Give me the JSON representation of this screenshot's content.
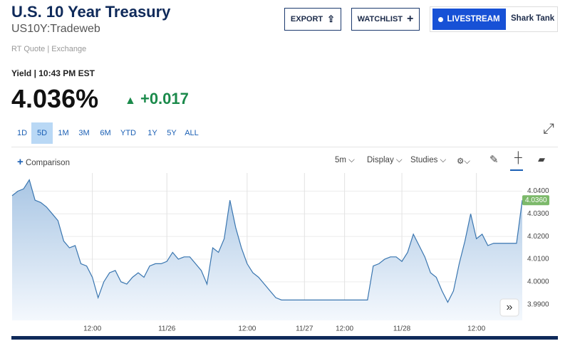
{
  "header": {
    "title": "U.S. 10 Year Treasury",
    "symbol": "US10Y:Tradeweb",
    "source": "RT Quote | Exchange",
    "buttons": {
      "export": "EXPORT",
      "watchlist": "WATCHLIST",
      "livestream": "LIVESTREAM",
      "show": "Shark Tank"
    }
  },
  "quote": {
    "label": "Yield | 10:43 PM EST",
    "price": "4.036%",
    "change": "+0.017"
  },
  "ranges": [
    "1D",
    "5D",
    "1M",
    "3M",
    "6M",
    "YTD",
    "1Y",
    "5Y",
    "ALL"
  ],
  "toolbar": {
    "comparison": "Comparison",
    "interval": "5m",
    "display": "Display",
    "studies": "Studies"
  },
  "chart_data": {
    "type": "line",
    "categories": [
      null,
      null,
      null,
      null,
      null,
      null,
      null,
      null,
      null,
      null,
      null,
      null,
      null,
      null,
      "12:00",
      null,
      null,
      null,
      null,
      null,
      null,
      null,
      null,
      null,
      null,
      null,
      null,
      "11/26",
      null,
      null,
      null,
      null,
      null,
      null,
      null,
      null,
      null,
      null,
      null,
      null,
      null,
      "12:00",
      null,
      null,
      null,
      null,
      null,
      null,
      null,
      null,
      null,
      "11/27",
      null,
      null,
      null,
      null,
      null,
      null,
      "12:00",
      null,
      null,
      null,
      null,
      null,
      null,
      null,
      null,
      null,
      "11/28",
      null,
      null,
      null,
      null,
      null,
      null,
      null,
      null,
      null,
      null,
      null,
      null,
      "12:00",
      null,
      null,
      null,
      null,
      null,
      null,
      null,
      null
    ],
    "values": [
      4.038,
      4.04,
      4.041,
      4.045,
      4.036,
      4.035,
      4.033,
      4.03,
      4.027,
      4.018,
      4.015,
      4.016,
      4.008,
      4.007,
      4.002,
      3.993,
      4.0,
      4.004,
      4.005,
      4.0,
      3.999,
      4.002,
      4.004,
      4.002,
      4.007,
      4.008,
      4.008,
      4.009,
      4.013,
      4.01,
      4.011,
      4.011,
      4.008,
      4.005,
      3.999,
      4.015,
      4.013,
      4.019,
      4.036,
      4.024,
      4.015,
      4.008,
      4.004,
      4.002,
      3.999,
      3.996,
      3.993,
      3.992,
      3.992,
      3.992,
      3.992,
      3.992,
      3.992,
      3.992,
      3.992,
      3.992,
      3.992,
      3.992,
      3.992,
      3.992,
      3.992,
      3.992,
      3.992,
      4.007,
      4.008,
      4.01,
      4.011,
      4.011,
      4.009,
      4.013,
      4.021,
      4.016,
      4.011,
      4.004,
      4.002,
      3.996,
      3.991,
      3.996,
      4.008,
      4.018,
      4.03,
      4.019,
      4.021,
      4.016,
      4.017,
      4.017,
      4.017,
      4.017,
      4.017,
      4.036
    ],
    "color": "#3a76b0",
    "ylim": [
      3.983,
      4.048
    ],
    "yticks": [
      {
        "value": 3.99,
        "label": "3.9900"
      },
      {
        "value": 4.0,
        "label": "4.0000"
      },
      {
        "value": 4.01,
        "label": "4.0100"
      },
      {
        "value": 4.02,
        "label": "4.0200"
      },
      {
        "value": 4.03,
        "label": "4.0300"
      },
      {
        "value": 4.04,
        "label": "4.0400"
      }
    ],
    "last_price": {
      "value": 4.036,
      "label": "4.0360"
    },
    "grid": true
  }
}
